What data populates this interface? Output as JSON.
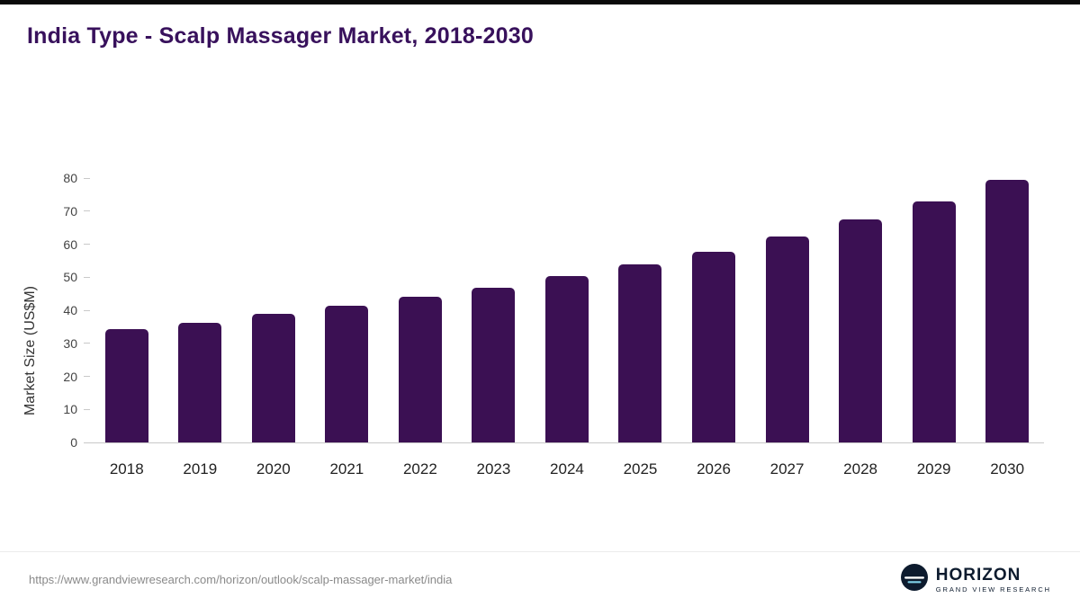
{
  "page": {
    "title": "India Type - Scalp Massager Market, 2018-2030"
  },
  "chart_data": {
    "type": "bar",
    "title": "India Type - Scalp Massager Market, 2018-2030",
    "categories": [
      "2018",
      "2019",
      "2020",
      "2021",
      "2022",
      "2023",
      "2024",
      "2025",
      "2026",
      "2027",
      "2028",
      "2029",
      "2030"
    ],
    "values": [
      34.3,
      36.1,
      38.9,
      41.5,
      44.1,
      46.9,
      50.4,
      53.9,
      57.7,
      62.3,
      67.4,
      72.9,
      79.4
    ],
    "xlabel": "",
    "ylabel": "Market Size (US$M)",
    "ylim": [
      0,
      80
    ],
    "yticks": [
      0,
      10,
      20,
      30,
      40,
      50,
      60,
      70,
      80
    ],
    "grid": "off",
    "legend": "none",
    "bar_color": "#3b1053"
  },
  "footer": {
    "source_url": "https://www.grandviewresearch.com/horizon/outlook/scalp-massager-market/india",
    "logo": {
      "brand": "HORIZON",
      "tagline": "GRAND VIEW RESEARCH"
    }
  }
}
